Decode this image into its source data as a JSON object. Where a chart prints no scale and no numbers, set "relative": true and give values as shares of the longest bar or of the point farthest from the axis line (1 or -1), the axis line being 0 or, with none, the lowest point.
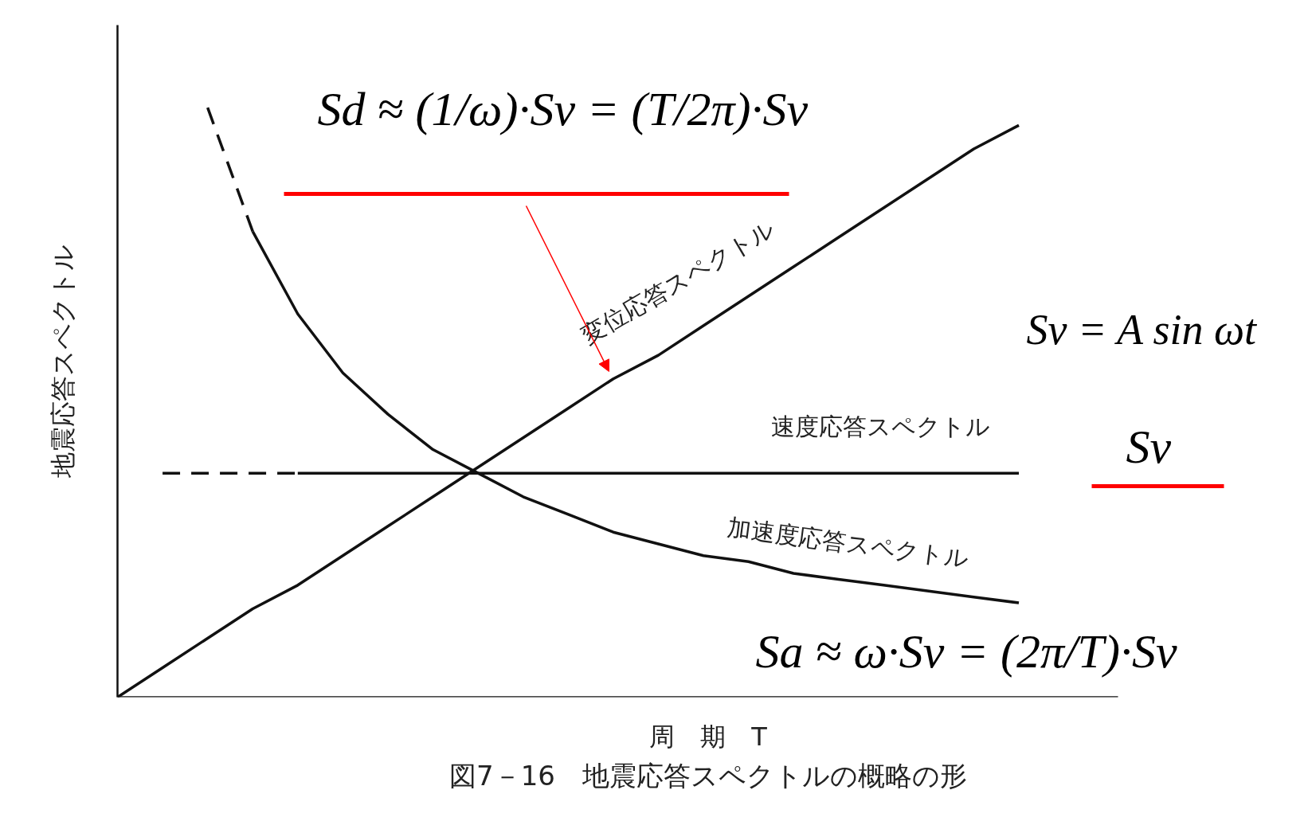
{
  "chart_data": {
    "type": "line",
    "relative": true,
    "xlabel": "周　期　T",
    "ylabel": "地震応答スペクトル",
    "categories": [
      null,
      null,
      null,
      null,
      null,
      null,
      null,
      null,
      null,
      null,
      null,
      null,
      null,
      null,
      null,
      null,
      null,
      null,
      null,
      null,
      null
    ],
    "series": [
      {
        "name": "変位応答スペクトル",
        "color": "#111111",
        "line_style": "solid",
        "values": [
          0,
          0.05,
          0.1,
          0.15,
          0.19,
          0.24,
          0.29,
          0.34,
          0.39,
          0.44,
          0.49,
          0.54,
          0.58,
          0.63,
          0.68,
          0.73,
          0.78,
          0.83,
          0.88,
          0.93,
          0.97
        ]
      },
      {
        "color": "#111111",
        "line_style": "dashed",
        "values": [
          null,
          0.38,
          0.38,
          0.38,
          0.38,
          null,
          null,
          null,
          null,
          null,
          null,
          null,
          null,
          null,
          null,
          null,
          null,
          null,
          null,
          null,
          null
        ]
      },
      {
        "name": "速度応答スペクトル",
        "color": "#111111",
        "line_style": "solid",
        "values": [
          null,
          null,
          null,
          null,
          0.38,
          0.38,
          0.38,
          0.38,
          0.38,
          0.38,
          0.38,
          0.38,
          0.38,
          0.38,
          0.38,
          0.38,
          0.38,
          0.38,
          0.38,
          0.38,
          0.38
        ]
      },
      {
        "color": "#111111",
        "line_style": "dashed",
        "values": [
          null,
          null,
          1,
          0.79,
          null,
          null,
          null,
          null,
          null,
          null,
          null,
          null,
          null,
          null,
          null,
          null,
          null,
          null,
          null,
          null,
          null
        ]
      },
      {
        "name": "加速度応答スペクトル",
        "color": "#111111",
        "line_style": "solid",
        "values": [
          null,
          null,
          null,
          0.79,
          0.65,
          0.55,
          0.48,
          0.42,
          0.38,
          0.34,
          0.31,
          0.28,
          0.26,
          0.24,
          0.23,
          0.21,
          0.2,
          0.19,
          0.18,
          0.17,
          0.16
        ]
      }
    ],
    "annotations": [
      "Sd ≈ (1/ω)·Sv = (T/2π)·Sv",
      "Sv = A sin ωt",
      "Sv",
      "Sa ≈ ω·Sv = (2π/T)·Sv",
      "図7－16　地震応答スペクトルの概略の形"
    ]
  }
}
